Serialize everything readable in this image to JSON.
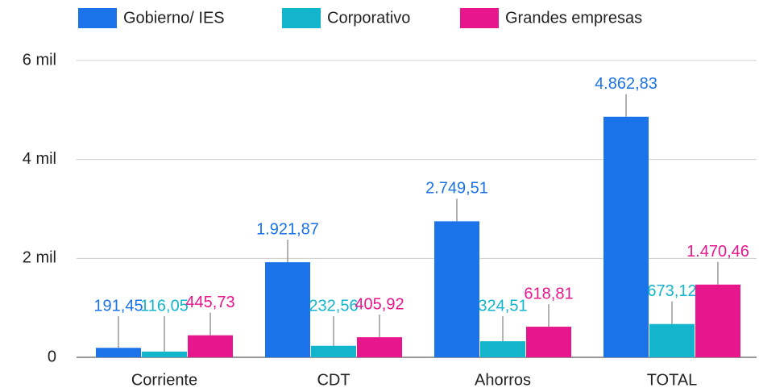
{
  "chart_data": {
    "type": "bar",
    "categories": [
      "Corriente",
      "CDT",
      "Ahorros",
      "TOTAL"
    ],
    "series": [
      {
        "name": "Gobierno/ IES",
        "color": "#1a73e8",
        "values": [
          191.45,
          1921.87,
          2749.51,
          4862.83
        ],
        "value_labels": [
          "191,45",
          "1.921,87",
          "2.749,51",
          "4.862,83"
        ]
      },
      {
        "name": "Corporativo",
        "color": "#12b5cb",
        "values": [
          116.05,
          232.56,
          324.51,
          673.12
        ],
        "value_labels": [
          "116,05",
          "232,56",
          "324,51",
          "673,12"
        ]
      },
      {
        "name": "Grandes empresas",
        "color": "#e8168c",
        "values": [
          445.73,
          405.92,
          618.81,
          1470.46
        ],
        "value_labels": [
          "445,73",
          "405,92",
          "618,81",
          "1.470,46"
        ]
      }
    ],
    "ylim": [
      0,
      6000
    ],
    "yticks": [
      0,
      {
        "value": 2000,
        "label": "2 mil"
      },
      {
        "value": 4000,
        "label": "4 mil"
      },
      {
        "value": 6000,
        "label": "6 mil"
      }
    ],
    "grid": true,
    "legend": "top"
  }
}
